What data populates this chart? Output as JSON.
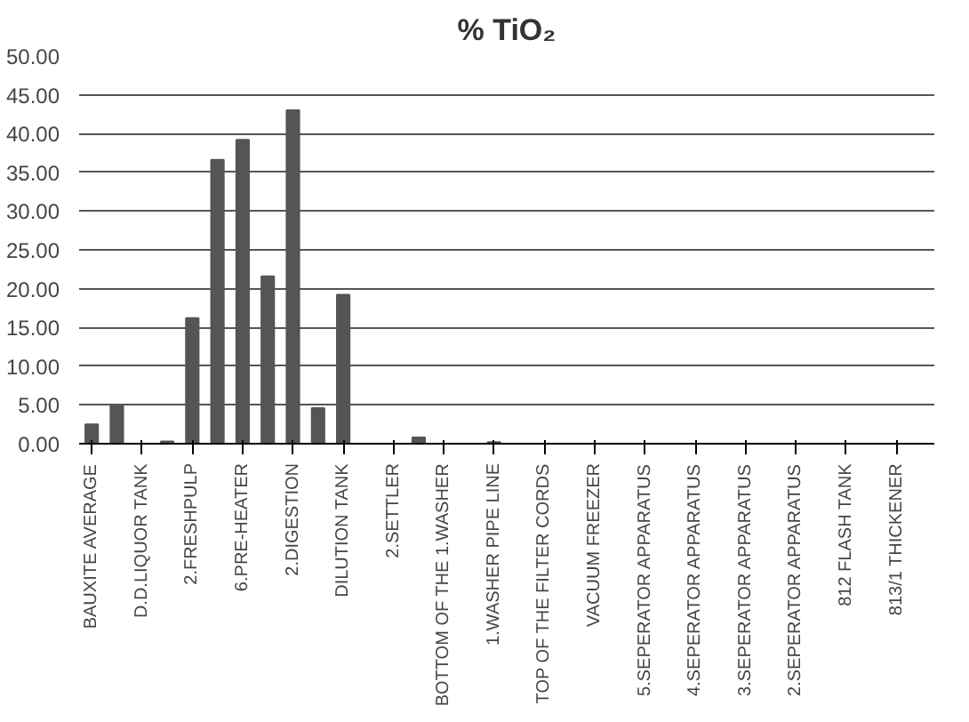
{
  "chart_data": {
    "type": "bar",
    "title": "% TiO₂",
    "categories": [
      "BAUXITE AVERAGE",
      null,
      "D.D.LIQUOR TANK",
      null,
      "2.FRESHPULP",
      null,
      "6.PRE-HEATER",
      null,
      "2.DIGESTION",
      null,
      "DILUTION TANK",
      null,
      "2.SETTLER",
      null,
      "BOTTOM OF THE 1.WASHER",
      null,
      "1.WASHER PIPE LINE",
      null,
      "TOP OF THE FILTER CORDS",
      null,
      "VACUUM FREEZER",
      null,
      "5.SEPERATOR APPARATUS",
      null,
      "4.SEPERATOR APPARATUS",
      null,
      "3.SEPERATOR APPARATUS",
      null,
      "2.SEPERATOR APPARATUS",
      null,
      "812 FLASH TANK",
      null,
      "813/1 THICKENER",
      null
    ],
    "values": [
      2.5,
      5.0,
      0,
      0.3,
      16.2,
      36.6,
      39.2,
      21.6,
      43.0,
      4.6,
      19.2,
      0,
      0,
      0.8,
      0,
      0,
      0.2,
      0,
      0,
      0,
      0,
      0,
      0,
      0,
      0,
      0,
      0,
      0,
      0,
      0,
      0,
      0,
      0,
      0
    ],
    "color": "#555555",
    "ylim": [
      0,
      50
    ],
    "yticks": [
      {
        "value": 0,
        "label": "0.00"
      },
      {
        "value": 5,
        "label": "5.00"
      },
      {
        "value": 10,
        "label": "10.00"
      },
      {
        "value": 15,
        "label": "15.00"
      },
      {
        "value": 20,
        "label": "20.00"
      },
      {
        "value": 25,
        "label": "25.00"
      },
      {
        "value": 30,
        "label": "30.00"
      },
      {
        "value": 35,
        "label": "35.00"
      },
      {
        "value": 40,
        "label": "40.00"
      },
      {
        "value": 45,
        "label": "45.00"
      },
      {
        "value": 50,
        "label": "50.00"
      }
    ],
    "grid": "y"
  }
}
